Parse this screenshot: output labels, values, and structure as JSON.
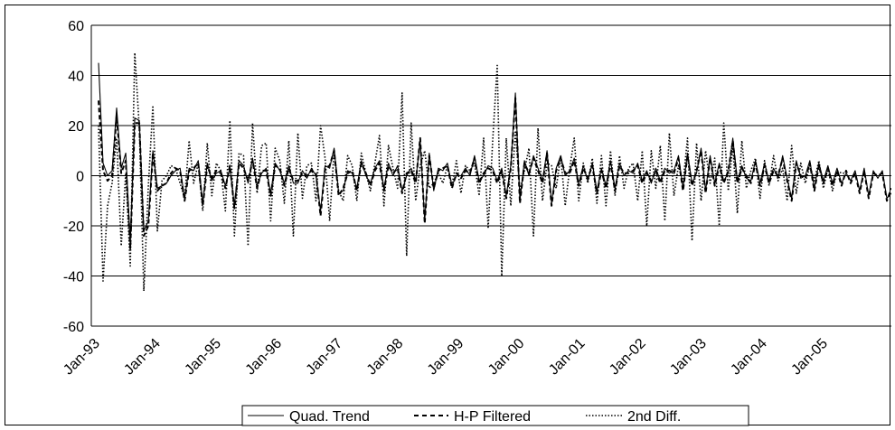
{
  "chart_data": {
    "type": "line",
    "title": "",
    "xlabel": "",
    "ylabel": "",
    "ylim": [
      -60,
      60
    ],
    "yticks": [
      "60",
      "40",
      "20",
      "0",
      "-20",
      "-40",
      "-60"
    ],
    "x_start": "Jan-93",
    "x_ticks": [
      "Jan-93",
      "Jan-94",
      "Jan-95",
      "Jan-96",
      "Jan-97",
      "Jan-98",
      "Jan-99",
      "Jan-00",
      "Jan-01",
      "Jan-02",
      "Jan-03",
      "Jan-04",
      "Jan-05"
    ],
    "legend_position": "bottom",
    "grid": "horizontal",
    "series": [
      {
        "name": "Quad. Trend",
        "style": "solid",
        "values": [
          45,
          5,
          0,
          2,
          27,
          3,
          9,
          -27,
          23,
          22,
          -22,
          -18,
          10,
          -5,
          -4,
          -3,
          0,
          2,
          3,
          -9,
          3,
          2,
          6,
          -11,
          5,
          -2,
          1,
          2,
          -4,
          3,
          -12,
          6,
          4,
          -3,
          7,
          -4,
          1,
          3,
          -7,
          5,
          2,
          -3,
          4,
          -3,
          -3,
          2,
          -1,
          3,
          0,
          -14,
          4,
          3,
          11,
          -7,
          -6,
          2,
          1,
          -5,
          6,
          0,
          -3,
          3,
          6,
          -5,
          5,
          0,
          4,
          -6,
          0,
          3,
          -2,
          14,
          -18,
          9,
          -6,
          3,
          2,
          5,
          -4,
          0,
          0,
          3,
          0,
          8,
          -2,
          0,
          4,
          3,
          -2,
          3,
          -8,
          4,
          33,
          -10,
          6,
          0,
          8,
          3,
          -2,
          10,
          -11,
          3,
          8,
          0,
          2,
          7,
          -3,
          4,
          -2,
          5,
          -6,
          3,
          -4,
          6,
          -5,
          5,
          0,
          2,
          1,
          5,
          -2,
          2,
          -3,
          3,
          -2,
          3,
          1,
          2,
          8,
          -5,
          9,
          -3,
          1,
          11,
          -6,
          8,
          -3,
          5,
          -2,
          1,
          15,
          -2,
          4,
          -1,
          -2,
          6,
          -3,
          5,
          -2,
          3,
          -1,
          8,
          -1,
          -9,
          6,
          -1,
          0,
          6,
          -5,
          5,
          -2,
          4,
          -3,
          3,
          -3,
          1,
          -2,
          2,
          -6,
          3,
          -8,
          2,
          -1,
          2,
          -9,
          -7
        ]
      },
      {
        "name": "H-P Filtered",
        "style": "dashed",
        "values": [
          30,
          2,
          -2,
          0,
          24,
          1,
          6,
          -29,
          21,
          21,
          -24,
          -20,
          9,
          -6,
          -4,
          -3,
          1,
          3,
          2,
          -10,
          2,
          3,
          5,
          -12,
          4,
          -1,
          2,
          1,
          -5,
          4,
          -13,
          5,
          3,
          -2,
          6,
          -5,
          2,
          2,
          -8,
          4,
          3,
          -4,
          3,
          -2,
          -2,
          1,
          0,
          2,
          1,
          -16,
          3,
          4,
          10,
          -8,
          -5,
          1,
          2,
          -6,
          5,
          1,
          -4,
          2,
          5,
          -6,
          4,
          1,
          3,
          -7,
          1,
          2,
          -3,
          15,
          -19,
          8,
          -5,
          2,
          3,
          4,
          -5,
          1,
          -1,
          2,
          1,
          7,
          -3,
          1,
          3,
          2,
          -3,
          2,
          -9,
          3,
          31,
          -11,
          5,
          1,
          7,
          2,
          -3,
          9,
          -12,
          2,
          7,
          1,
          1,
          6,
          -4,
          3,
          -1,
          4,
          -7,
          2,
          -5,
          5,
          -6,
          4,
          1,
          1,
          2,
          4,
          -3,
          1,
          -2,
          2,
          -3,
          2,
          2,
          1,
          7,
          -6,
          8,
          -4,
          2,
          10,
          -7,
          7,
          -4,
          4,
          -3,
          2,
          14,
          -3,
          3,
          0,
          -3,
          5,
          -4,
          4,
          -3,
          2,
          0,
          7,
          -2,
          -10,
          5,
          0,
          -1,
          5,
          -6,
          4,
          -3,
          3,
          -4,
          2,
          -4,
          2,
          -3,
          1,
          -7,
          2,
          -9,
          1,
          0,
          1,
          -10,
          -5
        ]
      },
      {
        "name": "2nd Diff.",
        "style": "dotted",
        "values": [
          20,
          -42,
          -12,
          -3,
          15,
          -28,
          1,
          -36,
          49,
          19,
          -46,
          -4,
          28,
          -22,
          -2,
          0,
          4,
          3,
          -3,
          -9,
          14,
          -3,
          5,
          -14,
          13,
          -8,
          5,
          2,
          -14,
          22,
          -24,
          9,
          8,
          -28,
          21,
          -7,
          12,
          13,
          -18,
          11,
          6,
          -11,
          14,
          -24,
          17,
          -9,
          4,
          5,
          -10,
          20,
          7,
          -18,
          10,
          -6,
          -10,
          8,
          4,
          -10,
          9,
          1,
          -6,
          5,
          16,
          -12,
          12,
          3,
          -5,
          33,
          -32,
          21,
          -10,
          4,
          10,
          -5,
          -3,
          1,
          -3,
          4,
          -4,
          6,
          -7,
          4,
          2,
          5,
          -8,
          15,
          -21,
          14,
          44,
          -40,
          15,
          -12,
          18,
          -6,
          2,
          11,
          -24,
          19,
          -10,
          5,
          4,
          -5,
          8,
          -12,
          3,
          15,
          -10,
          5,
          -3,
          7,
          -11,
          8,
          -12,
          10,
          -8,
          8,
          -5,
          3,
          5,
          -10,
          10,
          -20,
          10,
          -5,
          12,
          -18,
          17,
          -8,
          4,
          -3,
          15,
          -26,
          13,
          -10,
          10,
          -3,
          7,
          -20,
          21,
          -6,
          12,
          -15,
          14,
          -5,
          2,
          7,
          -9,
          6,
          -4,
          8,
          -2,
          3,
          -10,
          12,
          -7,
          5,
          -3,
          4,
          -2,
          6,
          -5,
          3,
          -6,
          2,
          1,
          1
        ]
      }
    ]
  }
}
